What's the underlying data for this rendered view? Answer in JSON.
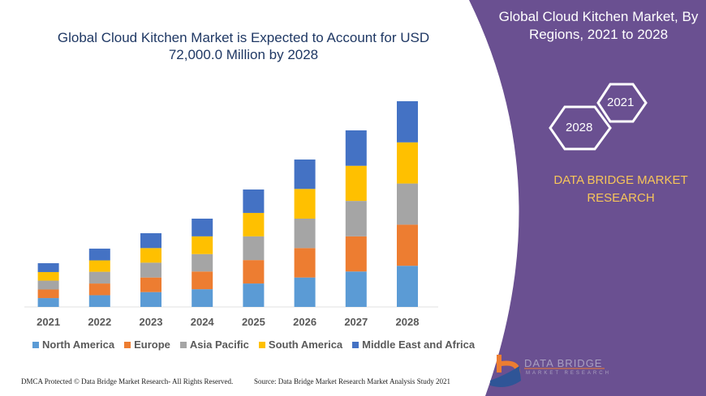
{
  "header": {
    "title_line1": "Global Cloud Kitchen Market is Expected to Account for USD",
    "title_line2": "72,000.0 Million by 2028"
  },
  "side_panel": {
    "title": "Global Cloud Kitchen Market, By Regions, 2021 to 2028",
    "hex_start": "2021",
    "hex_end": "2028",
    "brand": "DATA BRIDGE MARKET RESEARCH",
    "logo_text": "DATA BRIDGE",
    "logo_sub": "MARKET RESEARCH",
    "panel_color": "#6a5091",
    "brand_color": "#f7c55a"
  },
  "footer": {
    "left": "DMCA Protected © Data Bridge Market Research- All Rights Reserved.",
    "right": "Source: Data Bridge Market Research Market Analysis Study 2021"
  },
  "chart_data": {
    "type": "bar",
    "stacked": true,
    "title": "Global Cloud Kitchen Market is Expected to Account for USD 72,000.0 Million by 2028",
    "categories": [
      "2021",
      "2022",
      "2023",
      "2024",
      "2025",
      "2026",
      "2027",
      "2028"
    ],
    "series": [
      {
        "name": "North America",
        "color": "#5b9bd5",
        "values": [
          3100,
          4100,
          5200,
          6200,
          8200,
          10300,
          12400,
          14400
        ]
      },
      {
        "name": "Europe",
        "color": "#ed7d31",
        "values": [
          3000,
          4100,
          5100,
          6200,
          8200,
          10300,
          12300,
          14400
        ]
      },
      {
        "name": "Asia Pacific",
        "color": "#a5a5a5",
        "values": [
          3100,
          4100,
          5200,
          6100,
          8300,
          10300,
          12400,
          14400
        ]
      },
      {
        "name": "South America",
        "color": "#ffc000",
        "values": [
          3000,
          4000,
          5100,
          6200,
          8200,
          10400,
          12300,
          14400
        ]
      },
      {
        "name": "Middle East and Africa",
        "color": "#4472c4",
        "values": [
          3100,
          4100,
          5200,
          6200,
          8200,
          10300,
          12400,
          14400
        ]
      }
    ],
    "ylim": [
      0,
      72000
    ],
    "y_axis_shown": false,
    "grid": false,
    "legend_position": "bottom"
  }
}
